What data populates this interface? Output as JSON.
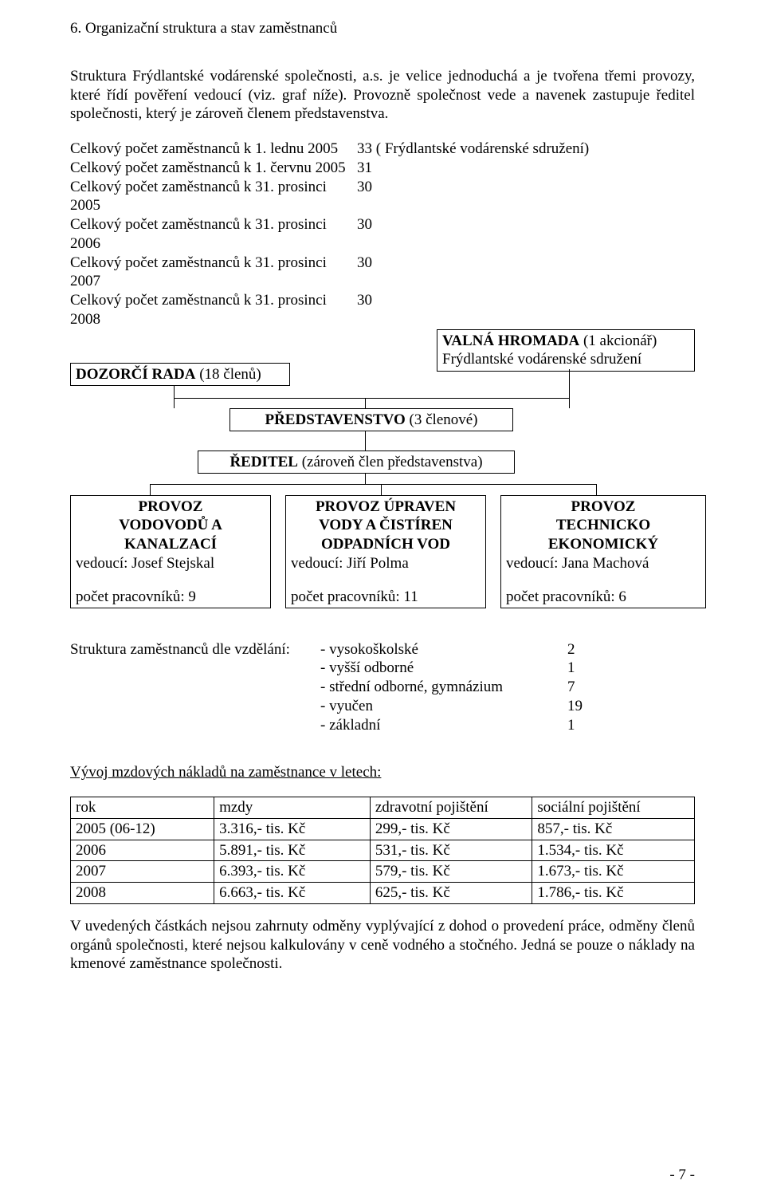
{
  "section_title": "6.   Organizační struktura a stav zaměstnanců",
  "intro_para": "Struktura Frýdlantské vodárenské společnosti, a.s. je velice jednoduchá a je tvořena třemi provozy, které řídí pověření vedoucí (viz. graf níže). Provozně společnost vede a navenek zastupuje ředitel společnosti, který je zároveň členem představenstva.",
  "counts": [
    {
      "label": "Celkový počet zaměstnanců k 1. lednu 2005",
      "value": "33 ( Frýdlantské vodárenské sdružení)"
    },
    {
      "label": "Celkový počet zaměstnanců k 1. červnu 2005",
      "value": "31"
    },
    {
      "label": "Celkový počet zaměstnanců k 31. prosinci 2005",
      "value": "30"
    },
    {
      "label": "Celkový počet zaměstnanců k 31. prosinci 2006",
      "value": "30"
    },
    {
      "label": "Celkový počet zaměstnanců k 31. prosinci 2007",
      "value": "30"
    },
    {
      "label": "Celkový počet zaměstnanců k 31. prosinci 2008",
      "value": "30"
    }
  ],
  "org": {
    "dozorci_bold": "DOZORČÍ RADA",
    "dozorci_rest": " (18 členů)",
    "valna_bold": "VALNÁ HROMADA",
    "valna_rest": " (1 akcionář)",
    "valna_sub": "Frýdlantské vodárenské sdružení",
    "predstavenstvo_bold": "PŘEDSTAVENSTVO",
    "predstavenstvo_rest": " (3 členové)",
    "reditel_bold": "ŘEDITEL",
    "reditel_rest": " (zároveň člen představenstva)"
  },
  "provoz": [
    {
      "line1": "PROVOZ",
      "line2": "VODOVODŮ A",
      "line3": "KANALZACÍ",
      "vedouci": "vedoucí: Josef Stejskal",
      "pocet": "počet pracovníků: 9"
    },
    {
      "line1": "PROVOZ ÚPRAVEN",
      "line2": "VODY A ČISTÍREN",
      "line3": "ODPADNÍCH VOD",
      "vedouci": "vedoucí: Jiří Polma",
      "pocet": "počet pracovníků: 11"
    },
    {
      "line1": "PROVOZ",
      "line2": "TECHNICKO",
      "line3": "EKONOMICKÝ",
      "vedouci": "vedoucí: Jana Machová",
      "pocet": "počet pracovníků: 6"
    }
  ],
  "edu_title": "Struktura zaměstnanců dle vzdělání:",
  "edu": [
    {
      "cat": "- vysokoškolské",
      "val": "2"
    },
    {
      "cat": "- vyšší odborné",
      "val": "1"
    },
    {
      "cat": "- střední odborné, gymnázium",
      "val": "7"
    },
    {
      "cat": "- vyučen",
      "val": "19"
    },
    {
      "cat": "- základní",
      "val": "1"
    }
  ],
  "wage_title": "Vývoj mzdových nákladů na zaměstnance v letech:",
  "wage": {
    "columns": [
      "rok",
      "mzdy",
      "zdravotní pojištění",
      "sociální pojištění"
    ],
    "rows": [
      [
        "2005 (06-12)",
        "3.316,- tis. Kč",
        "299,- tis. Kč",
        "857,- tis. Kč"
      ],
      [
        "2006",
        "5.891,- tis. Kč",
        "531,- tis. Kč",
        "1.534,- tis. Kč"
      ],
      [
        "2007",
        "6.393,- tis. Kč",
        "579,- tis. Kč",
        "1.673,- tis. Kč"
      ],
      [
        "2008",
        "6.663,- tis. Kč",
        "625,- tis. Kč",
        "1.786,- tis. Kč"
      ]
    ],
    "col_widths_pct": [
      23,
      25,
      26,
      26
    ]
  },
  "footer_para": "V uvedených částkách nejsou zahrnuty odměny vyplývající z dohod o provedení práce, odměny členů orgánů společnosti, které nejsou kalkulovány v ceně vodného a stočného. Jedná se pouze o náklady na kmenové zaměstnance společnosti.",
  "page_number": "- 7 -"
}
